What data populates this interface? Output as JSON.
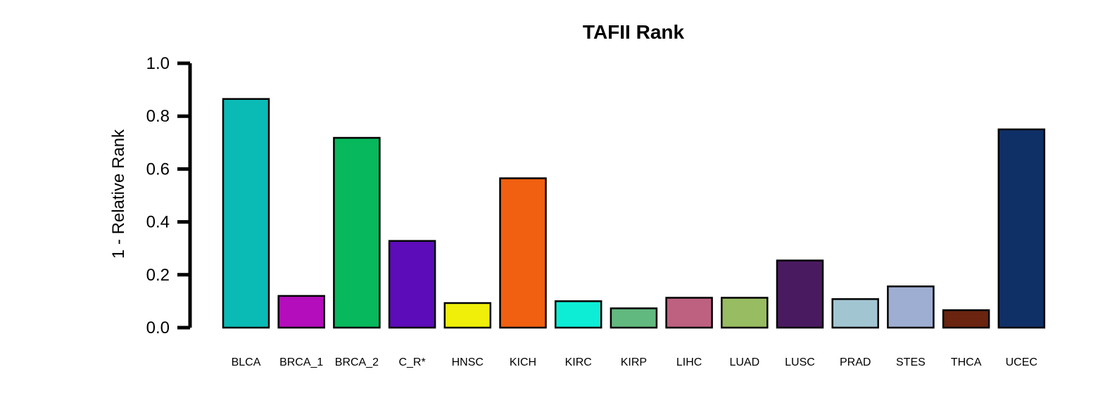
{
  "chart_data": {
    "type": "bar",
    "title": "TAFII Rank",
    "xlabel": "",
    "ylabel": "1 - Relative Rank",
    "ylim": [
      0,
      1
    ],
    "yticks": [
      "0.0",
      "0.2",
      "0.4",
      "0.6",
      "0.8",
      "1.0"
    ],
    "grid": false,
    "categories": [
      "BLCA",
      "BRCA_1",
      "BRCA_2",
      "C_R*",
      "HNSC",
      "KICH",
      "KIRC",
      "KIRP",
      "LIHC",
      "LUAD",
      "LUSC",
      "PRAD",
      "STES",
      "THCA",
      "UCEC"
    ],
    "values": [
      0.865,
      0.12,
      0.718,
      0.328,
      0.093,
      0.565,
      0.1,
      0.073,
      0.113,
      0.113,
      0.254,
      0.108,
      0.156,
      0.066,
      0.75
    ],
    "colors": [
      "#0ABAB5",
      "#B40DBB",
      "#07B85C",
      "#5C0CB8",
      "#EFEF0A",
      "#F06010",
      "#0DEDD5",
      "#62B97F",
      "#BE6180",
      "#97BC61",
      "#4A1A60",
      "#A2C5D2",
      "#9EAED2",
      "#6A2410",
      "#0F2F67"
    ]
  }
}
